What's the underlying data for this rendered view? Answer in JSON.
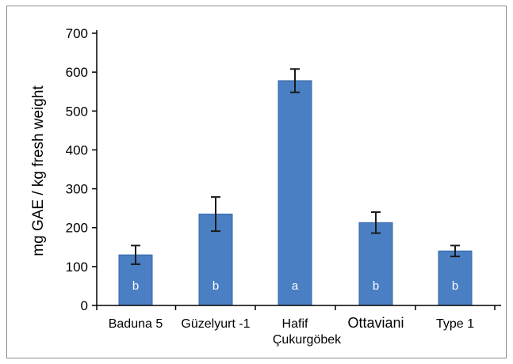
{
  "chart_data": {
    "type": "bar",
    "title": "",
    "xlabel": "",
    "ylabel": "mg GAE / kg fresh weight",
    "categories": [
      "Baduna 5",
      "Güzelyurt -1",
      "Hafif\nÇukurgöbek",
      "Ottaviani",
      "Type 1"
    ],
    "values": [
      130,
      235,
      578,
      213,
      140
    ],
    "errors": [
      24,
      44,
      30,
      27,
      14
    ],
    "letters": [
      "b",
      "b",
      "a",
      "b",
      "b"
    ],
    "ylim": [
      0,
      700
    ],
    "yticks": [
      0,
      100,
      200,
      300,
      400,
      500,
      600,
      700
    ],
    "grid": false,
    "colors": {
      "bar": "#4a7fc4",
      "bar_edge": "#3566a6",
      "error_bar": "#1a1a1a",
      "letter": "#ffffff",
      "axis": "#000000"
    }
  }
}
